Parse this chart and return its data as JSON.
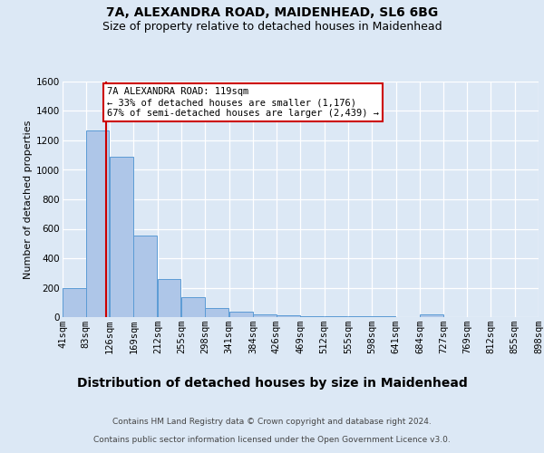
{
  "title1": "7A, ALEXANDRA ROAD, MAIDENHEAD, SL6 6BG",
  "title2": "Size of property relative to detached houses in Maidenhead",
  "xlabel": "Distribution of detached houses by size in Maidenhead",
  "ylabel": "Number of detached properties",
  "footer1": "Contains HM Land Registry data © Crown copyright and database right 2024.",
  "footer2": "Contains public sector information licensed under the Open Government Licence v3.0.",
  "bin_labels": [
    "41sqm",
    "83sqm",
    "126sqm",
    "169sqm",
    "212sqm",
    "255sqm",
    "298sqm",
    "341sqm",
    "384sqm",
    "426sqm",
    "469sqm",
    "512sqm",
    "555sqm",
    "598sqm",
    "641sqm",
    "684sqm",
    "727sqm",
    "769sqm",
    "812sqm",
    "855sqm",
    "898sqm"
  ],
  "bin_edges": [
    41,
    83,
    126,
    169,
    212,
    255,
    298,
    341,
    384,
    426,
    469,
    512,
    555,
    598,
    641,
    684,
    727,
    769,
    812,
    855,
    898
  ],
  "bar_heights": [
    200,
    1270,
    1090,
    555,
    260,
    135,
    60,
    35,
    20,
    10,
    5,
    5,
    5,
    5,
    0,
    20,
    0,
    0,
    0,
    0
  ],
  "bar_color": "#aec6e8",
  "bar_edge_color": "#5b9bd5",
  "property_size": 119,
  "property_line_color": "#cc0000",
  "annotation_line1": "7A ALEXANDRA ROAD: 119sqm",
  "annotation_line2": "← 33% of detached houses are smaller (1,176)",
  "annotation_line3": "67% of semi-detached houses are larger (2,439) →",
  "annotation_box_color": "#ffffff",
  "annotation_border_color": "#cc0000",
  "ylim": [
    0,
    1600
  ],
  "background_color": "#dce8f5",
  "plot_bg_color": "#dce8f5",
  "grid_color": "#ffffff",
  "title1_fontsize": 10,
  "title2_fontsize": 9,
  "xlabel_fontsize": 10,
  "ylabel_fontsize": 8,
  "tick_fontsize": 7.5,
  "annotation_fontsize": 7.5,
  "footer_fontsize": 6.5
}
